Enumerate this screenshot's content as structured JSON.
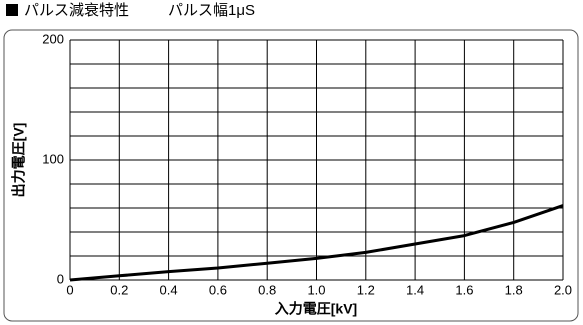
{
  "chart_data": {
    "type": "line",
    "title": "パルス減衰特性",
    "subtitle": "パルス幅1μS",
    "x_label": "入力電圧[kV]",
    "y_label": "出力電圧[V]",
    "x": [
      0,
      0.2,
      0.4,
      0.6,
      0.8,
      1.0,
      1.2,
      1.4,
      1.6,
      1.8,
      2.0
    ],
    "series": [
      {
        "name": "出力電圧",
        "color": "#000000",
        "values": [
          0,
          3.5,
          7,
          10,
          14,
          18,
          23,
          30,
          37,
          48,
          62
        ]
      }
    ],
    "xlim": [
      0,
      2
    ],
    "ylim": [
      0,
      200
    ],
    "xticks": [
      0,
      0.2,
      0.4,
      0.6,
      0.8,
      {
        "value": 1,
        "label": "1.0"
      },
      1.2,
      1.4,
      1.6,
      1.8,
      {
        "value": 2,
        "label": "2.0"
      }
    ],
    "yticks": [
      0,
      100,
      200
    ],
    "ygrid": [
      0,
      20,
      40,
      60,
      80,
      100,
      120,
      140,
      160,
      180,
      200
    ],
    "grid": true
  }
}
